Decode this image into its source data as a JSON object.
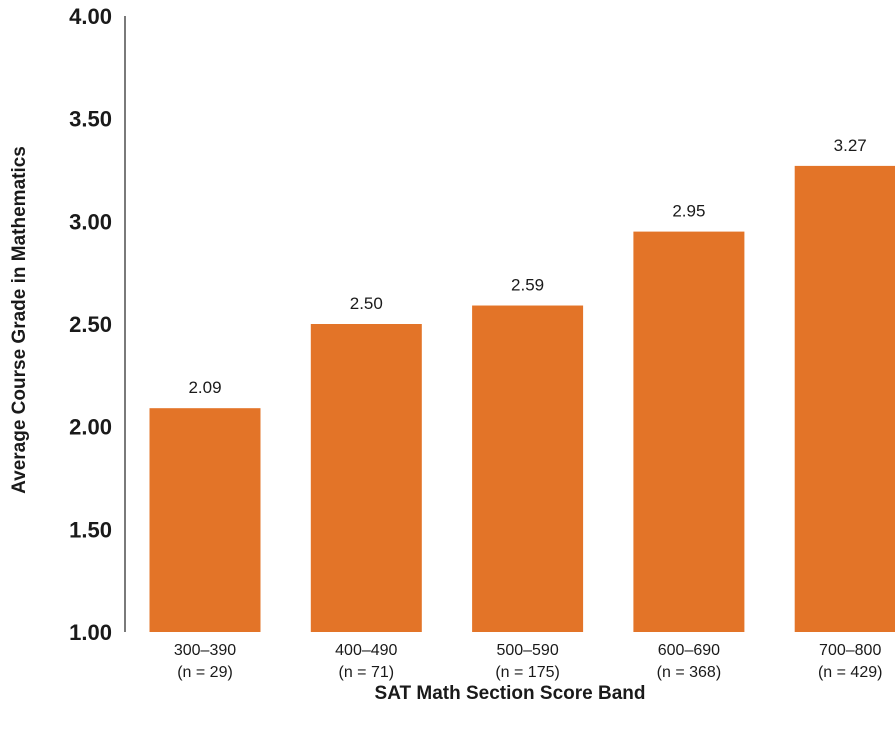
{
  "chart_data": {
    "type": "bar",
    "categories": [
      [
        "300–390",
        "(n = 29)"
      ],
      [
        "400–490",
        "(n = 71)"
      ],
      [
        "500–590",
        "(n = 175)"
      ],
      [
        "600–690",
        "(n = 368)"
      ],
      [
        "700–800",
        "(n = 429)"
      ]
    ],
    "values": [
      2.09,
      2.5,
      2.59,
      2.95,
      3.27
    ],
    "value_labels": [
      "2.09",
      "2.50",
      "2.59",
      "2.95",
      "3.27"
    ],
    "title": "",
    "xlabel": "SAT Math Section Score Band",
    "ylabel": "Average Course Grade in Mathematics",
    "ylim": [
      1.0,
      4.0
    ],
    "yticks": [
      1.0,
      1.5,
      2.0,
      2.5,
      3.0,
      3.5,
      4.0
    ],
    "ytick_labels": [
      "1.00",
      "1.50",
      "2.00",
      "2.50",
      "3.00",
      "3.50",
      "4.00"
    ],
    "grid": false,
    "legend": "none",
    "bar_color": "#E37428"
  }
}
